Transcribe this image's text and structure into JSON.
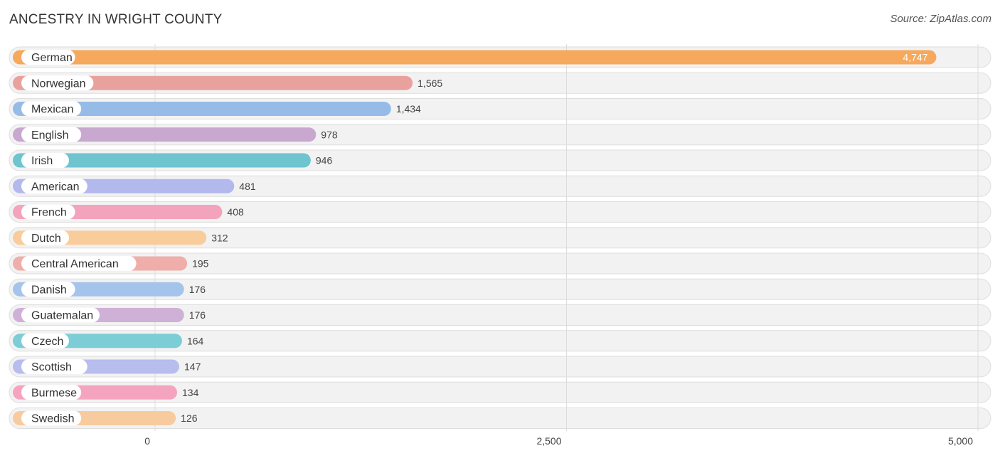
{
  "header": {
    "title": "ANCESTRY IN WRIGHT COUNTY",
    "source": "Source: ZipAtlas.com"
  },
  "chart_data": {
    "type": "bar",
    "orientation": "horizontal",
    "title": "ANCESTRY IN WRIGHT COUNTY",
    "xlabel": "",
    "ylabel": "",
    "xlim": [
      0,
      5000
    ],
    "x_ticks": [
      0,
      2500,
      5000
    ],
    "x_tick_labels": [
      "0",
      "2,500",
      "5,000"
    ],
    "categories": [
      "German",
      "Norwegian",
      "Mexican",
      "English",
      "Irish",
      "American",
      "French",
      "Dutch",
      "Central American",
      "Danish",
      "Guatemalan",
      "Czech",
      "Scottish",
      "Burmese",
      "Swedish"
    ],
    "values": [
      4747,
      1565,
      1434,
      978,
      946,
      481,
      408,
      312,
      195,
      176,
      176,
      164,
      147,
      134,
      126
    ],
    "value_labels": [
      "4,747",
      "1,565",
      "1,434",
      "978",
      "946",
      "481",
      "408",
      "312",
      "195",
      "176",
      "176",
      "164",
      "147",
      "134",
      "126"
    ],
    "colors": [
      "#f6a85c",
      "#e9a19e",
      "#96bbe6",
      "#c8a8cf",
      "#6ec4cf",
      "#b3b9ec",
      "#f4a3bd",
      "#f9cc9c",
      "#efaeaa",
      "#a5c4ec",
      "#cfb0d6",
      "#7ccdd5",
      "#b7bded",
      "#f5a4c0",
      "#f8cb9f"
    ],
    "grid": true
  }
}
